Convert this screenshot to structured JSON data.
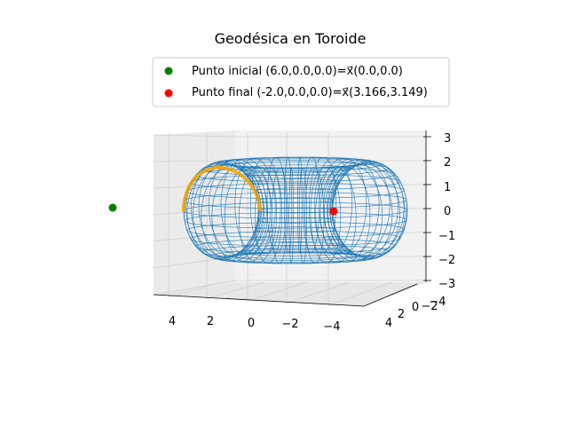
{
  "chart_data": {
    "type": "3d-wireframe",
    "title": "Geodésica en Toroide",
    "surface": {
      "shape": "torus",
      "major_radius": 4,
      "minor_radius": 2,
      "color": "#1f77b4"
    },
    "geodesic": {
      "color": "#f5a300"
    },
    "points": [
      {
        "name": "Punto inicial (6.0,0.0,0.0)=x⃗(0.0,0.0)",
        "x": 6.0,
        "y": 0.0,
        "z": 0.0,
        "color": "#008000"
      },
      {
        "name": "Punto final (-2.0,0.0,0.0)=x⃗(3.166,3.149)",
        "x": -2.0,
        "y": 0.0,
        "z": 0.0,
        "color": "#ff0000"
      }
    ],
    "legend": {
      "placement": "top-center",
      "entries": [
        "Punto inicial (6.0,0.0,0.0)=x⃗(0.0,0.0)",
        "Punto final (-2.0,0.0,0.0)=x⃗(3.166,3.149)"
      ]
    },
    "x_ticks": [
      "4",
      "2",
      "0",
      "−2",
      "−4"
    ],
    "y_ticks": [
      "4",
      "2",
      "0",
      "−2",
      "−4"
    ],
    "z_ticks": [
      "3",
      "2",
      "1",
      "0",
      "−1",
      "−2",
      "−3"
    ],
    "xlabel": "",
    "ylabel": "",
    "zlabel": "",
    "grid": true
  }
}
